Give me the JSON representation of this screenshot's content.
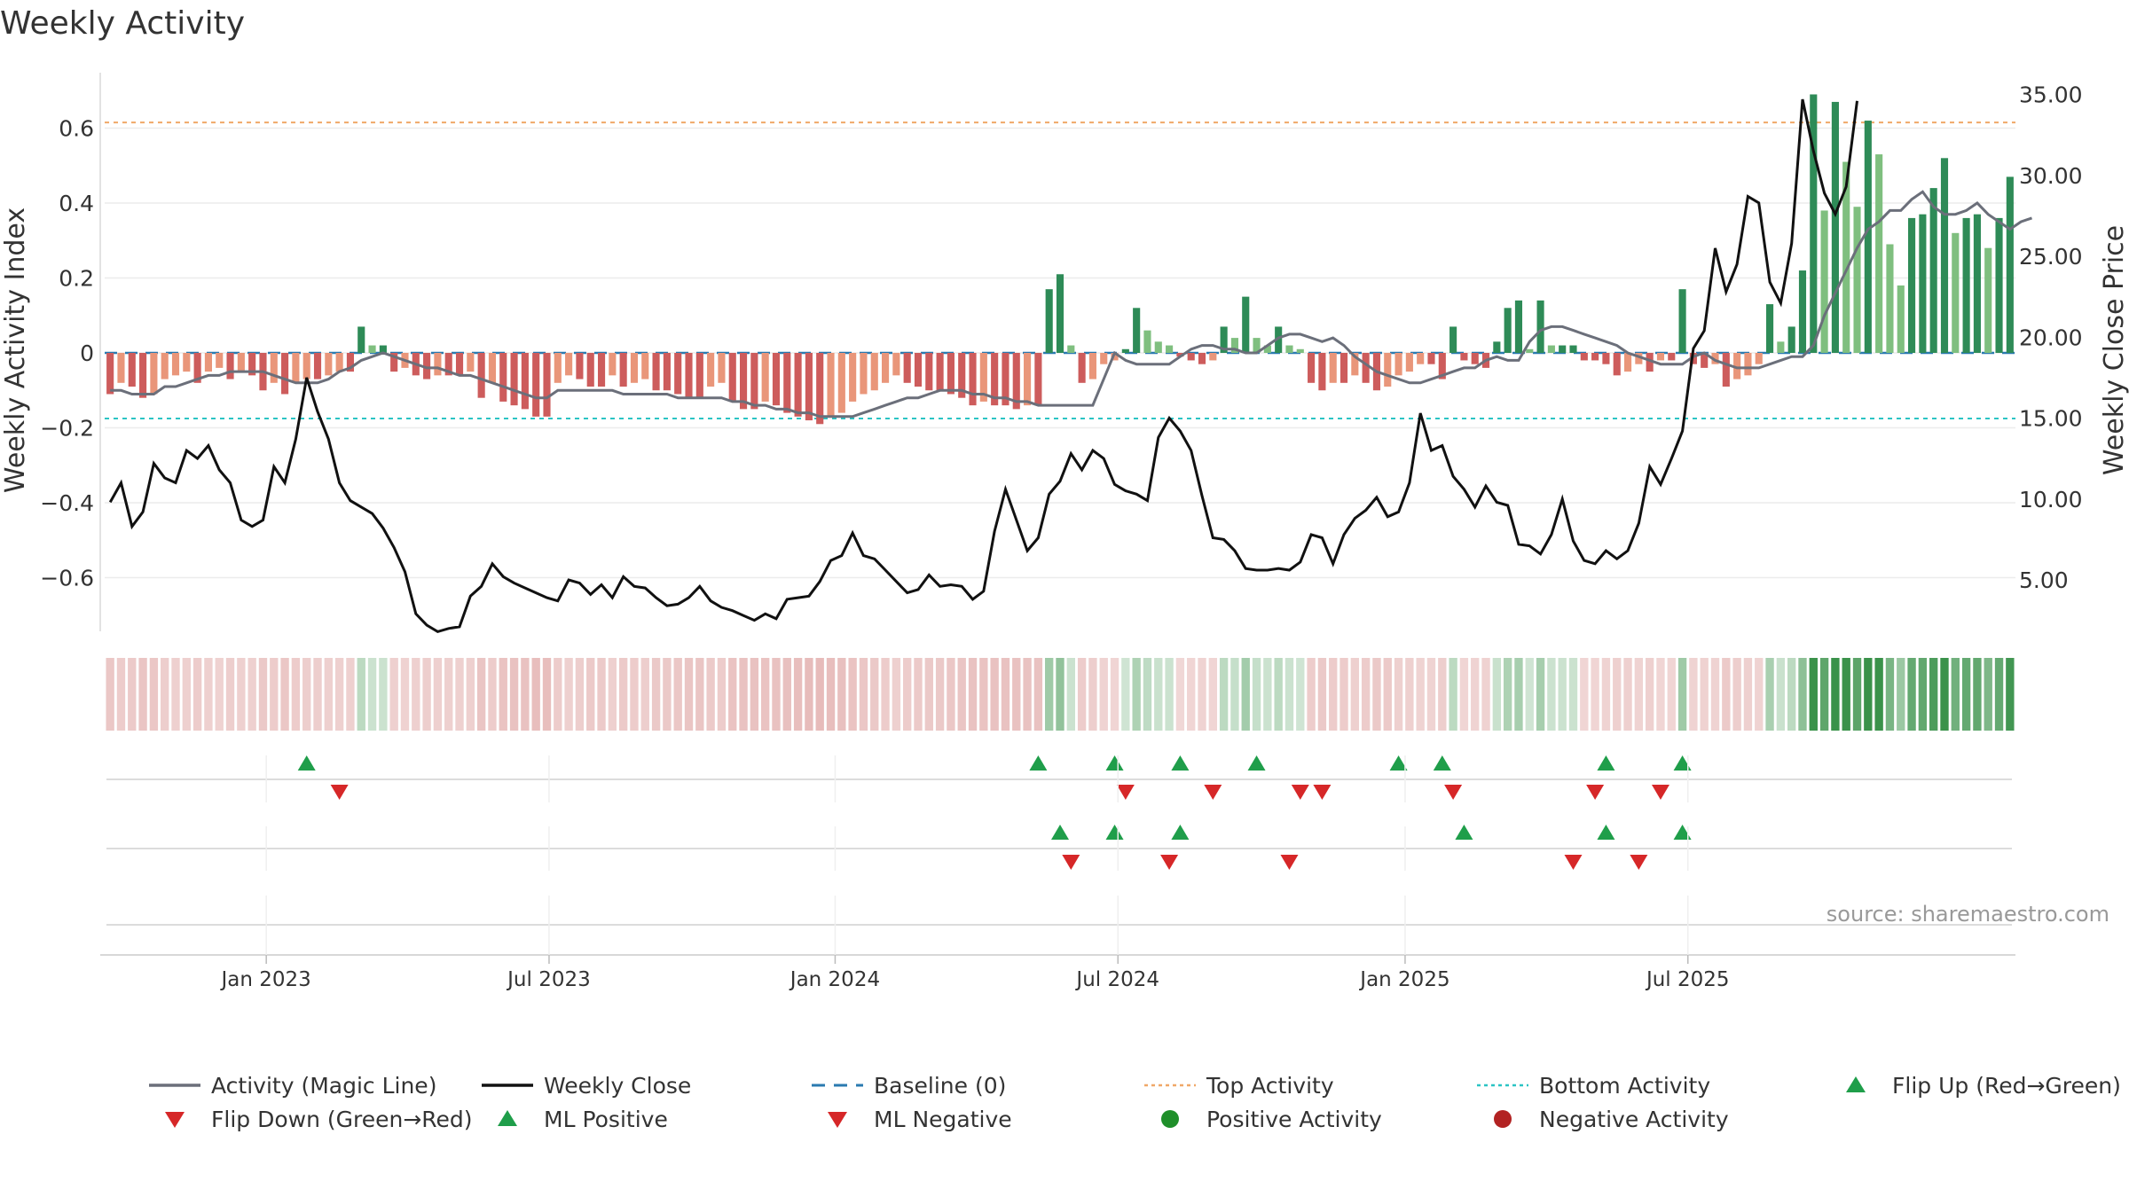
{
  "chart_data": {
    "type": "bar+line",
    "title": "Weekly Activity",
    "ylabel_left": "Weekly Activity Index",
    "ylabel_right": "Weekly Close Price",
    "source": "source: sharemaestro.com",
    "ylim_left": [
      -0.75,
      0.75
    ],
    "ylim_right": [
      1.0,
      36.4
    ],
    "left_ticks": [
      {
        "v": 0.6,
        "label": "0.6"
      },
      {
        "v": 0.4,
        "label": "0.4"
      },
      {
        "v": 0.2,
        "label": "0.2"
      },
      {
        "v": 0,
        "label": "0"
      },
      {
        "v": -0.2,
        "label": "−0.2"
      },
      {
        "v": -0.4,
        "label": "−0.4"
      },
      {
        "v": -0.6,
        "label": "−0.6"
      }
    ],
    "right_ticks": [
      {
        "v": 35,
        "label": "35.00"
      },
      {
        "v": 30,
        "label": "30.00"
      },
      {
        "v": 25,
        "label": "25.00"
      },
      {
        "v": 20,
        "label": "20.00"
      },
      {
        "v": 15,
        "label": "15.00"
      },
      {
        "v": 10,
        "label": "10.00"
      },
      {
        "v": 5,
        "label": "5.00"
      }
    ],
    "x_ticks": [
      {
        "week": 14.8,
        "label": "Jan 2023"
      },
      {
        "week": 40.7,
        "label": "Jul 2023"
      },
      {
        "week": 66.9,
        "label": "Jan 2024"
      },
      {
        "week": 92.8,
        "label": "Jul 2024"
      },
      {
        "week": 119.1,
        "label": "Jan 2025"
      },
      {
        "week": 145,
        "label": "Jul 2025"
      }
    ],
    "top_activity": 0.615,
    "bottom_activity": -0.175,
    "activity": [
      -0.11,
      -0.08,
      -0.09,
      -0.12,
      -0.11,
      -0.07,
      -0.06,
      -0.05,
      -0.08,
      -0.05,
      -0.04,
      -0.07,
      -0.05,
      -0.06,
      -0.1,
      -0.08,
      -0.11,
      -0.08,
      -0.07,
      -0.07,
      -0.06,
      -0.05,
      -0.05,
      0.07,
      0.02,
      0.02,
      -0.05,
      -0.04,
      -0.06,
      -0.07,
      -0.06,
      -0.06,
      -0.06,
      -0.05,
      -0.12,
      -0.08,
      -0.13,
      -0.14,
      -0.15,
      -0.17,
      -0.17,
      -0.08,
      -0.06,
      -0.07,
      -0.09,
      -0.09,
      -0.06,
      -0.09,
      -0.08,
      -0.07,
      -0.1,
      -0.1,
      -0.11,
      -0.12,
      -0.12,
      -0.09,
      -0.08,
      -0.13,
      -0.15,
      -0.15,
      -0.13,
      -0.14,
      -0.16,
      -0.17,
      -0.18,
      -0.19,
      -0.17,
      -0.16,
      -0.13,
      -0.11,
      -0.1,
      -0.08,
      -0.06,
      -0.08,
      -0.09,
      -0.1,
      -0.1,
      -0.11,
      -0.12,
      -0.14,
      -0.13,
      -0.14,
      -0.14,
      -0.15,
      -0.14,
      -0.14,
      0.17,
      0.21,
      0.02,
      -0.08,
      -0.07,
      -0.03,
      -0.02,
      0.01,
      0.12,
      0.06,
      0.03,
      0.02,
      -0.01,
      -0.02,
      -0.03,
      -0.02,
      0.07,
      0.04,
      0.15,
      0.04,
      0.02,
      0.07,
      0.02,
      0.01,
      -0.08,
      -0.1,
      -0.08,
      -0.08,
      -0.06,
      -0.08,
      -0.1,
      -0.09,
      -0.06,
      -0.05,
      -0.03,
      -0.03,
      -0.07,
      0.07,
      -0.02,
      -0.03,
      -0.04,
      0.03,
      0.12,
      0.14,
      0.01,
      0.14,
      0.02,
      0.02,
      0.02,
      -0.02,
      -0.02,
      -0.03,
      -0.06,
      -0.05,
      -0.03,
      -0.05,
      -0.02,
      -0.02,
      0.17,
      -0.03,
      -0.04,
      -0.03,
      -0.09,
      -0.07,
      -0.06,
      -0.03,
      0.13,
      0.03,
      0.07,
      0.22,
      0.69,
      0.38,
      0.67,
      0.51,
      0.39,
      0.62,
      0.53,
      0.29,
      0.18,
      0.36,
      0.37,
      0.44,
      0.52,
      0.32,
      0.36,
      0.37,
      0.28,
      0.36,
      0.47
    ],
    "magic_line": [
      -0.1,
      -0.1,
      -0.11,
      -0.11,
      -0.11,
      -0.09,
      -0.09,
      -0.08,
      -0.07,
      -0.06,
      -0.06,
      -0.05,
      -0.05,
      -0.05,
      -0.05,
      -0.06,
      -0.07,
      -0.08,
      -0.08,
      -0.08,
      -0.07,
      -0.05,
      -0.04,
      -0.02,
      -0.01,
      0.0,
      -0.01,
      -0.02,
      -0.03,
      -0.04,
      -0.04,
      -0.05,
      -0.06,
      -0.06,
      -0.07,
      -0.08,
      -0.09,
      -0.1,
      -0.11,
      -0.12,
      -0.12,
      -0.1,
      -0.1,
      -0.1,
      -0.1,
      -0.1,
      -0.1,
      -0.11,
      -0.11,
      -0.11,
      -0.11,
      -0.11,
      -0.12,
      -0.12,
      -0.12,
      -0.12,
      -0.12,
      -0.13,
      -0.13,
      -0.14,
      -0.14,
      -0.15,
      -0.15,
      -0.16,
      -0.16,
      -0.17,
      -0.17,
      -0.17,
      -0.17,
      -0.16,
      -0.15,
      -0.14,
      -0.13,
      -0.12,
      -0.12,
      -0.11,
      -0.1,
      -0.1,
      -0.1,
      -0.11,
      -0.11,
      -0.12,
      -0.12,
      -0.13,
      -0.13,
      -0.14,
      -0.14,
      -0.14,
      -0.14,
      -0.14,
      -0.14,
      -0.07,
      0.0,
      -0.02,
      -0.03,
      -0.03,
      -0.03,
      -0.03,
      -0.01,
      0.01,
      0.02,
      0.02,
      0.01,
      0.01,
      0.0,
      0.0,
      0.02,
      0.04,
      0.05,
      0.05,
      0.04,
      0.03,
      0.04,
      0.02,
      -0.01,
      -0.03,
      -0.05,
      -0.06,
      -0.07,
      -0.08,
      -0.08,
      -0.07,
      -0.06,
      -0.05,
      -0.04,
      -0.04,
      -0.02,
      -0.01,
      -0.02,
      -0.02,
      0.03,
      0.06,
      0.07,
      0.07,
      0.06,
      0.05,
      0.04,
      0.03,
      0.02,
      0.0,
      -0.01,
      -0.02,
      -0.03,
      -0.03,
      -0.03,
      -0.01,
      0.0,
      -0.02,
      -0.03,
      -0.04,
      -0.04,
      -0.04,
      -0.03,
      -0.02,
      -0.01,
      -0.01,
      0.02,
      0.1,
      0.16,
      0.22,
      0.28,
      0.33,
      0.35,
      0.38,
      0.38,
      0.41,
      0.43,
      0.39,
      0.37,
      0.37,
      0.38,
      0.4,
      0.37,
      0.35,
      0.33,
      0.35,
      0.36
    ],
    "weekly_close": [
      9.8,
      11.0,
      8.3,
      9.2,
      12.2,
      11.3,
      11.0,
      13.0,
      12.5,
      13.3,
      11.8,
      11.0,
      8.7,
      8.3,
      8.7,
      12.0,
      11.0,
      13.7,
      17.5,
      15.4,
      13.7,
      11.0,
      9.9,
      9.5,
      9.1,
      8.2,
      7.0,
      5.5,
      2.9,
      2.2,
      1.8,
      2.0,
      2.1,
      4.0,
      4.6,
      6.0,
      5.2,
      4.8,
      4.5,
      4.2,
      3.9,
      3.7,
      5.0,
      4.8,
      4.1,
      4.7,
      3.9,
      5.2,
      4.6,
      4.5,
      3.9,
      3.4,
      3.5,
      3.9,
      4.6,
      3.7,
      3.3,
      3.1,
      2.8,
      2.5,
      2.9,
      2.6,
      3.8,
      3.9,
      4.0,
      4.9,
      6.2,
      6.5,
      7.9,
      6.5,
      6.3,
      5.6,
      4.9,
      4.2,
      4.4,
      5.3,
      4.6,
      4.7,
      4.6,
      3.8,
      4.3,
      8.0,
      10.6,
      8.7,
      6.8,
      7.6,
      10.3,
      11.1,
      12.8,
      11.8,
      13.0,
      12.5,
      10.9,
      10.5,
      10.3,
      9.9,
      13.8,
      15.0,
      14.2,
      13.0,
      10.2,
      7.6,
      7.5,
      6.8,
      5.7,
      5.6,
      5.6,
      5.7,
      5.6,
      6.1,
      7.8,
      7.6,
      6.0,
      7.8,
      8.8,
      9.3,
      10.1,
      8.9,
      9.2,
      11.0,
      15.3,
      13.0,
      13.3,
      11.4,
      10.6,
      9.5,
      10.8,
      9.8,
      9.6,
      7.2,
      7.1,
      6.6,
      7.8,
      10.0,
      7.4,
      6.2,
      6.0,
      6.8,
      6.3,
      6.8,
      8.5,
      12.0,
      10.9,
      12.5,
      14.2,
      19.3,
      20.4,
      25.5,
      22.8,
      24.5,
      28.7,
      28.3,
      23.4,
      22.1,
      25.8,
      34.7,
      31.5,
      28.9,
      27.6,
      29.3,
      34.6
    ],
    "ml_flips_up": [
      18,
      85,
      92,
      98,
      105,
      118,
      122,
      137,
      144
    ],
    "ml_flips_down": [
      21,
      93,
      101,
      109,
      111,
      123,
      136,
      142
    ],
    "ml_positive": [
      87,
      92,
      98,
      124,
      137,
      144
    ],
    "ml_negative": [
      88,
      97,
      108,
      134,
      140
    ],
    "legend": [
      {
        "label": "Activity (Magic Line)",
        "kind": "line",
        "color": "#6b6f7a"
      },
      {
        "label": "Weekly Close",
        "kind": "line",
        "color": "#111111"
      },
      {
        "label": "Baseline (0)",
        "kind": "dash",
        "color": "#2a7ab0"
      },
      {
        "label": "Top Activity",
        "kind": "dot",
        "color": "#f0a868"
      },
      {
        "label": "Bottom Activity",
        "kind": "dot",
        "color": "#2bc4c4"
      },
      {
        "label": "Flip Up (Red→Green)",
        "kind": "tri-up",
        "color": "#1f9e4a"
      },
      {
        "label": "Flip Down (Green→Red)",
        "kind": "tri-down",
        "color": "#d62728"
      },
      {
        "label": "ML Positive",
        "kind": "tri-up",
        "color": "#1f9e4a"
      },
      {
        "label": "ML Negative",
        "kind": "tri-down",
        "color": "#d62728"
      },
      {
        "label": "Positive Activity",
        "kind": "circle",
        "color": "#1f8f2a"
      },
      {
        "label": "Negative Activity",
        "kind": "circle",
        "color": "#b22222"
      }
    ],
    "colors": {
      "pos_strong": "#2e8b57",
      "pos_light": "#7fbf7f",
      "neg_strong": "#cd5c5c",
      "neg_light": "#e9967a",
      "top": "#f0a868",
      "bottom": "#2bc4c4",
      "baseline": "#2a7ab0"
    }
  }
}
